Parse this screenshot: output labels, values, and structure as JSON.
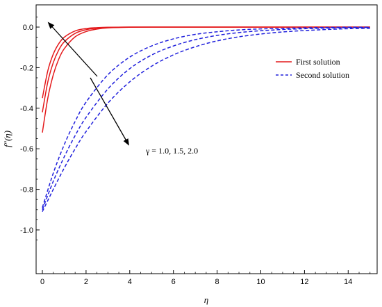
{
  "chart_data": {
    "type": "line",
    "title": "",
    "xlabel": "η",
    "ylabel": "f″(η)",
    "xlim": [
      0,
      15
    ],
    "ylim": [
      -1.1,
      0.08
    ],
    "x_ticks": [
      0,
      2,
      4,
      6,
      8,
      10,
      12,
      14
    ],
    "x_tick_labels": [
      "0",
      "2",
      "4",
      "6",
      "8",
      "10",
      "12",
      "14"
    ],
    "y_ticks": [
      0.0,
      -0.2,
      -0.4,
      -0.6,
      -0.8,
      -1.0
    ],
    "y_tick_labels": [
      "0.0",
      "-0.2",
      "-0.4",
      "-0.6",
      "-0.8",
      "-1.0"
    ],
    "grid": false,
    "legend_position": "right",
    "legend": [
      {
        "label": "First solution",
        "style": "solid",
        "color": "#e41a1c"
      },
      {
        "label": "Second solution",
        "style": "dashed",
        "color": "#1f1fdc"
      }
    ],
    "annotation": "γ = 1.0, 1.5, 2.0",
    "colors": {
      "first": "#e41a1c",
      "second": "#1f1fdc"
    },
    "series": [
      {
        "group": "First solution",
        "style": "solid",
        "color": "#e41a1c",
        "x": [
          0,
          0.25,
          0.5,
          0.75,
          1,
          1.5,
          2,
          2.5,
          3,
          4,
          5,
          6,
          8,
          10,
          12,
          15
        ],
        "y": [
          -0.35,
          -0.215,
          -0.133,
          -0.082,
          -0.05,
          -0.019,
          -0.007,
          -0.003,
          -0.001,
          0,
          0,
          0,
          0,
          0,
          0,
          0
        ]
      },
      {
        "group": "First solution",
        "style": "solid",
        "color": "#e41a1c",
        "x": [
          0,
          0.25,
          0.5,
          0.75,
          1,
          1.5,
          2,
          2.5,
          3,
          4,
          5,
          6,
          8,
          10,
          12,
          15
        ],
        "y": [
          -0.42,
          -0.27,
          -0.175,
          -0.113,
          -0.073,
          -0.031,
          -0.013,
          -0.005,
          -0.002,
          0,
          0,
          0,
          0,
          0,
          0,
          0
        ]
      },
      {
        "group": "First solution",
        "style": "solid",
        "color": "#e41a1c",
        "x": [
          0,
          0.25,
          0.5,
          0.75,
          1,
          1.5,
          2,
          2.5,
          3,
          4,
          5,
          6,
          8,
          10,
          12,
          15
        ],
        "y": [
          -0.52,
          -0.35,
          -0.235,
          -0.158,
          -0.107,
          -0.048,
          -0.022,
          -0.01,
          -0.004,
          -0.001,
          0,
          0,
          0,
          0,
          0,
          0
        ]
      },
      {
        "group": "Second solution",
        "style": "dashed",
        "color": "#1f1fdc",
        "x": [
          0,
          0.5,
          1,
          1.5,
          2,
          3,
          4,
          5,
          6,
          7,
          8,
          9,
          10,
          11,
          12,
          13,
          14,
          15
        ],
        "y": [
          -0.89,
          -0.72,
          -0.58,
          -0.465,
          -0.37,
          -0.235,
          -0.148,
          -0.093,
          -0.058,
          -0.036,
          -0.023,
          -0.014,
          -0.009,
          -0.006,
          -0.004,
          -0.002,
          -0.001,
          -0.001
        ]
      },
      {
        "group": "Second solution",
        "style": "dashed",
        "color": "#1f1fdc",
        "x": [
          0,
          0.5,
          1,
          1.5,
          2,
          3,
          4,
          5,
          6,
          7,
          8,
          9,
          10,
          11,
          12,
          13,
          14,
          15
        ],
        "y": [
          -0.9,
          -0.76,
          -0.64,
          -0.535,
          -0.445,
          -0.305,
          -0.205,
          -0.138,
          -0.093,
          -0.062,
          -0.041,
          -0.027,
          -0.018,
          -0.012,
          -0.008,
          -0.005,
          -0.003,
          -0.002
        ]
      },
      {
        "group": "Second solution",
        "style": "dashed",
        "color": "#1f1fdc",
        "x": [
          0,
          0.5,
          1,
          1.5,
          2,
          3,
          4,
          5,
          6,
          7,
          8,
          9,
          10,
          11,
          12,
          13,
          14,
          15
        ],
        "y": [
          -0.91,
          -0.8,
          -0.695,
          -0.6,
          -0.515,
          -0.375,
          -0.27,
          -0.193,
          -0.137,
          -0.097,
          -0.068,
          -0.048,
          -0.034,
          -0.024,
          -0.017,
          -0.012,
          -0.008,
          -0.006
        ]
      }
    ]
  }
}
